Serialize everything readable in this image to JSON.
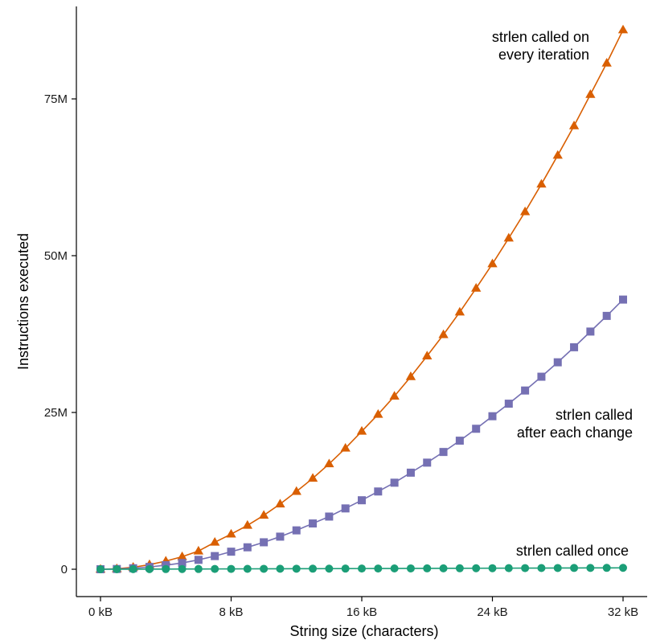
{
  "chart_data": {
    "type": "line",
    "title": "",
    "xlabel": "String size (characters)",
    "ylabel": "Instructions executed",
    "xlim": [
      0,
      32768
    ],
    "ylim": [
      -4500000,
      90000000
    ],
    "x_ticks": [
      {
        "value": 0,
        "label": "0 kB"
      },
      {
        "value": 8192,
        "label": "8 kB"
      },
      {
        "value": 16384,
        "label": "16 kB"
      },
      {
        "value": 24576,
        "label": "24 kB"
      },
      {
        "value": 32768,
        "label": "32 kB"
      }
    ],
    "y_ticks": [
      {
        "value": 0,
        "label": "0"
      },
      {
        "value": 25000000,
        "label": "25M"
      },
      {
        "value": 50000000,
        "label": "50M"
      },
      {
        "value": 75000000,
        "label": "75M"
      }
    ],
    "grid": false,
    "legend": "none",
    "x": [
      0,
      1024,
      2048,
      3072,
      4096,
      5120,
      6144,
      7168,
      8192,
      9216,
      10240,
      11264,
      12288,
      13312,
      14336,
      15360,
      16384,
      17408,
      18432,
      19456,
      20480,
      21504,
      22528,
      23552,
      24576,
      25600,
      26624,
      27648,
      28672,
      29696,
      30720,
      31744,
      32768
    ],
    "series": [
      {
        "name": "strlen called on every iteration",
        "color": "#d95f02",
        "marker": "triangle",
        "label_lines": [
          "strlen called on",
          "every iteration"
        ],
        "values": [
          0,
          80000,
          320000,
          730000,
          1300000,
          2000000,
          2900000,
          4300000,
          5600000,
          7000000,
          8600000,
          10400000,
          12400000,
          14500000,
          16800000,
          19300000,
          22000000,
          24700000,
          27600000,
          30700000,
          34000000,
          37400000,
          41000000,
          44800000,
          48700000,
          52800000,
          57000000,
          61400000,
          66000000,
          70700000,
          75700000,
          80700000,
          86000000
        ]
      },
      {
        "name": "strlen called after each change",
        "color": "#7570b3",
        "marker": "square",
        "label_lines": [
          "strlen called",
          "after each change"
        ],
        "values": [
          0,
          40000,
          160000,
          370000,
          650000,
          1000000,
          1500000,
          2100000,
          2800000,
          3500000,
          4300000,
          5200000,
          6200000,
          7300000,
          8400000,
          9700000,
          11000000,
          12400000,
          13800000,
          15400000,
          17000000,
          18700000,
          20500000,
          22400000,
          24400000,
          26400000,
          28500000,
          30700000,
          33000000,
          35400000,
          37900000,
          40400000,
          43000000
        ]
      },
      {
        "name": "strlen called once",
        "color": "#1b9e77",
        "marker": "circle",
        "label_lines": [
          "strlen called once"
        ],
        "values": [
          0,
          7000,
          14000,
          21000,
          28000,
          35000,
          42000,
          49000,
          56000,
          63000,
          70000,
          77000,
          84000,
          91000,
          98000,
          105000,
          112000,
          119000,
          126000,
          133000,
          140000,
          147000,
          154000,
          161000,
          168000,
          175000,
          182000,
          189000,
          196000,
          203000,
          210000,
          217000,
          224000
        ]
      }
    ]
  }
}
